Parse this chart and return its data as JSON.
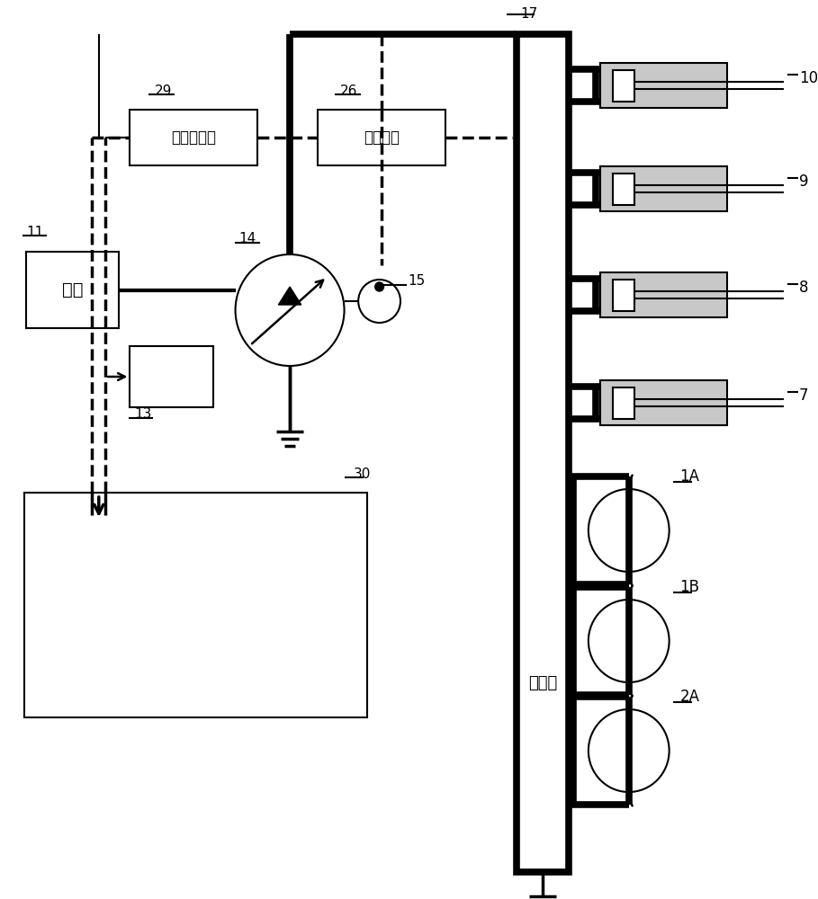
{
  "bg": "#ffffff",
  "lc": "#000000",
  "tlw": 5.5,
  "mlw": 2.5,
  "nlw": 1.5,
  "labels": {
    "engine": "引擎",
    "pressure_sensor": "压力传感器",
    "operation_device": "操作装置",
    "control_valve": "控制阀"
  },
  "nums": [
    "7",
    "8",
    "9",
    "10",
    "11",
    "13",
    "14",
    "15",
    "17",
    "26",
    "29",
    "30",
    "1A",
    "1B",
    "2A"
  ]
}
